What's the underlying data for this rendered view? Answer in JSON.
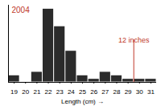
{
  "chart_data": {
    "type": "histogram",
    "title": "2004",
    "bins": [
      18.5,
      19.5,
      20.5,
      21.5,
      22.5,
      23.5,
      24.5,
      25.5,
      26.5,
      27.5,
      28.5,
      29.5,
      30.5,
      31.5
    ],
    "counts": [
      2,
      0,
      3,
      21,
      16,
      9,
      2,
      1,
      3,
      2,
      1,
      1,
      1
    ],
    "color": "#2b2b2b",
    "xlabel": "Length (cm)",
    "xlim": [
      18.5,
      31.5
    ],
    "xticks": [
      19,
      20,
      21,
      22,
      23,
      24,
      25,
      26,
      27,
      28,
      29,
      30,
      31
    ],
    "ylim": [
      0,
      22
    ],
    "tick_labels": "x",
    "grid": false,
    "annotations": [
      {
        "text": "12 inches",
        "x": 29.5,
        "color": "#c0392b"
      }
    ]
  }
}
